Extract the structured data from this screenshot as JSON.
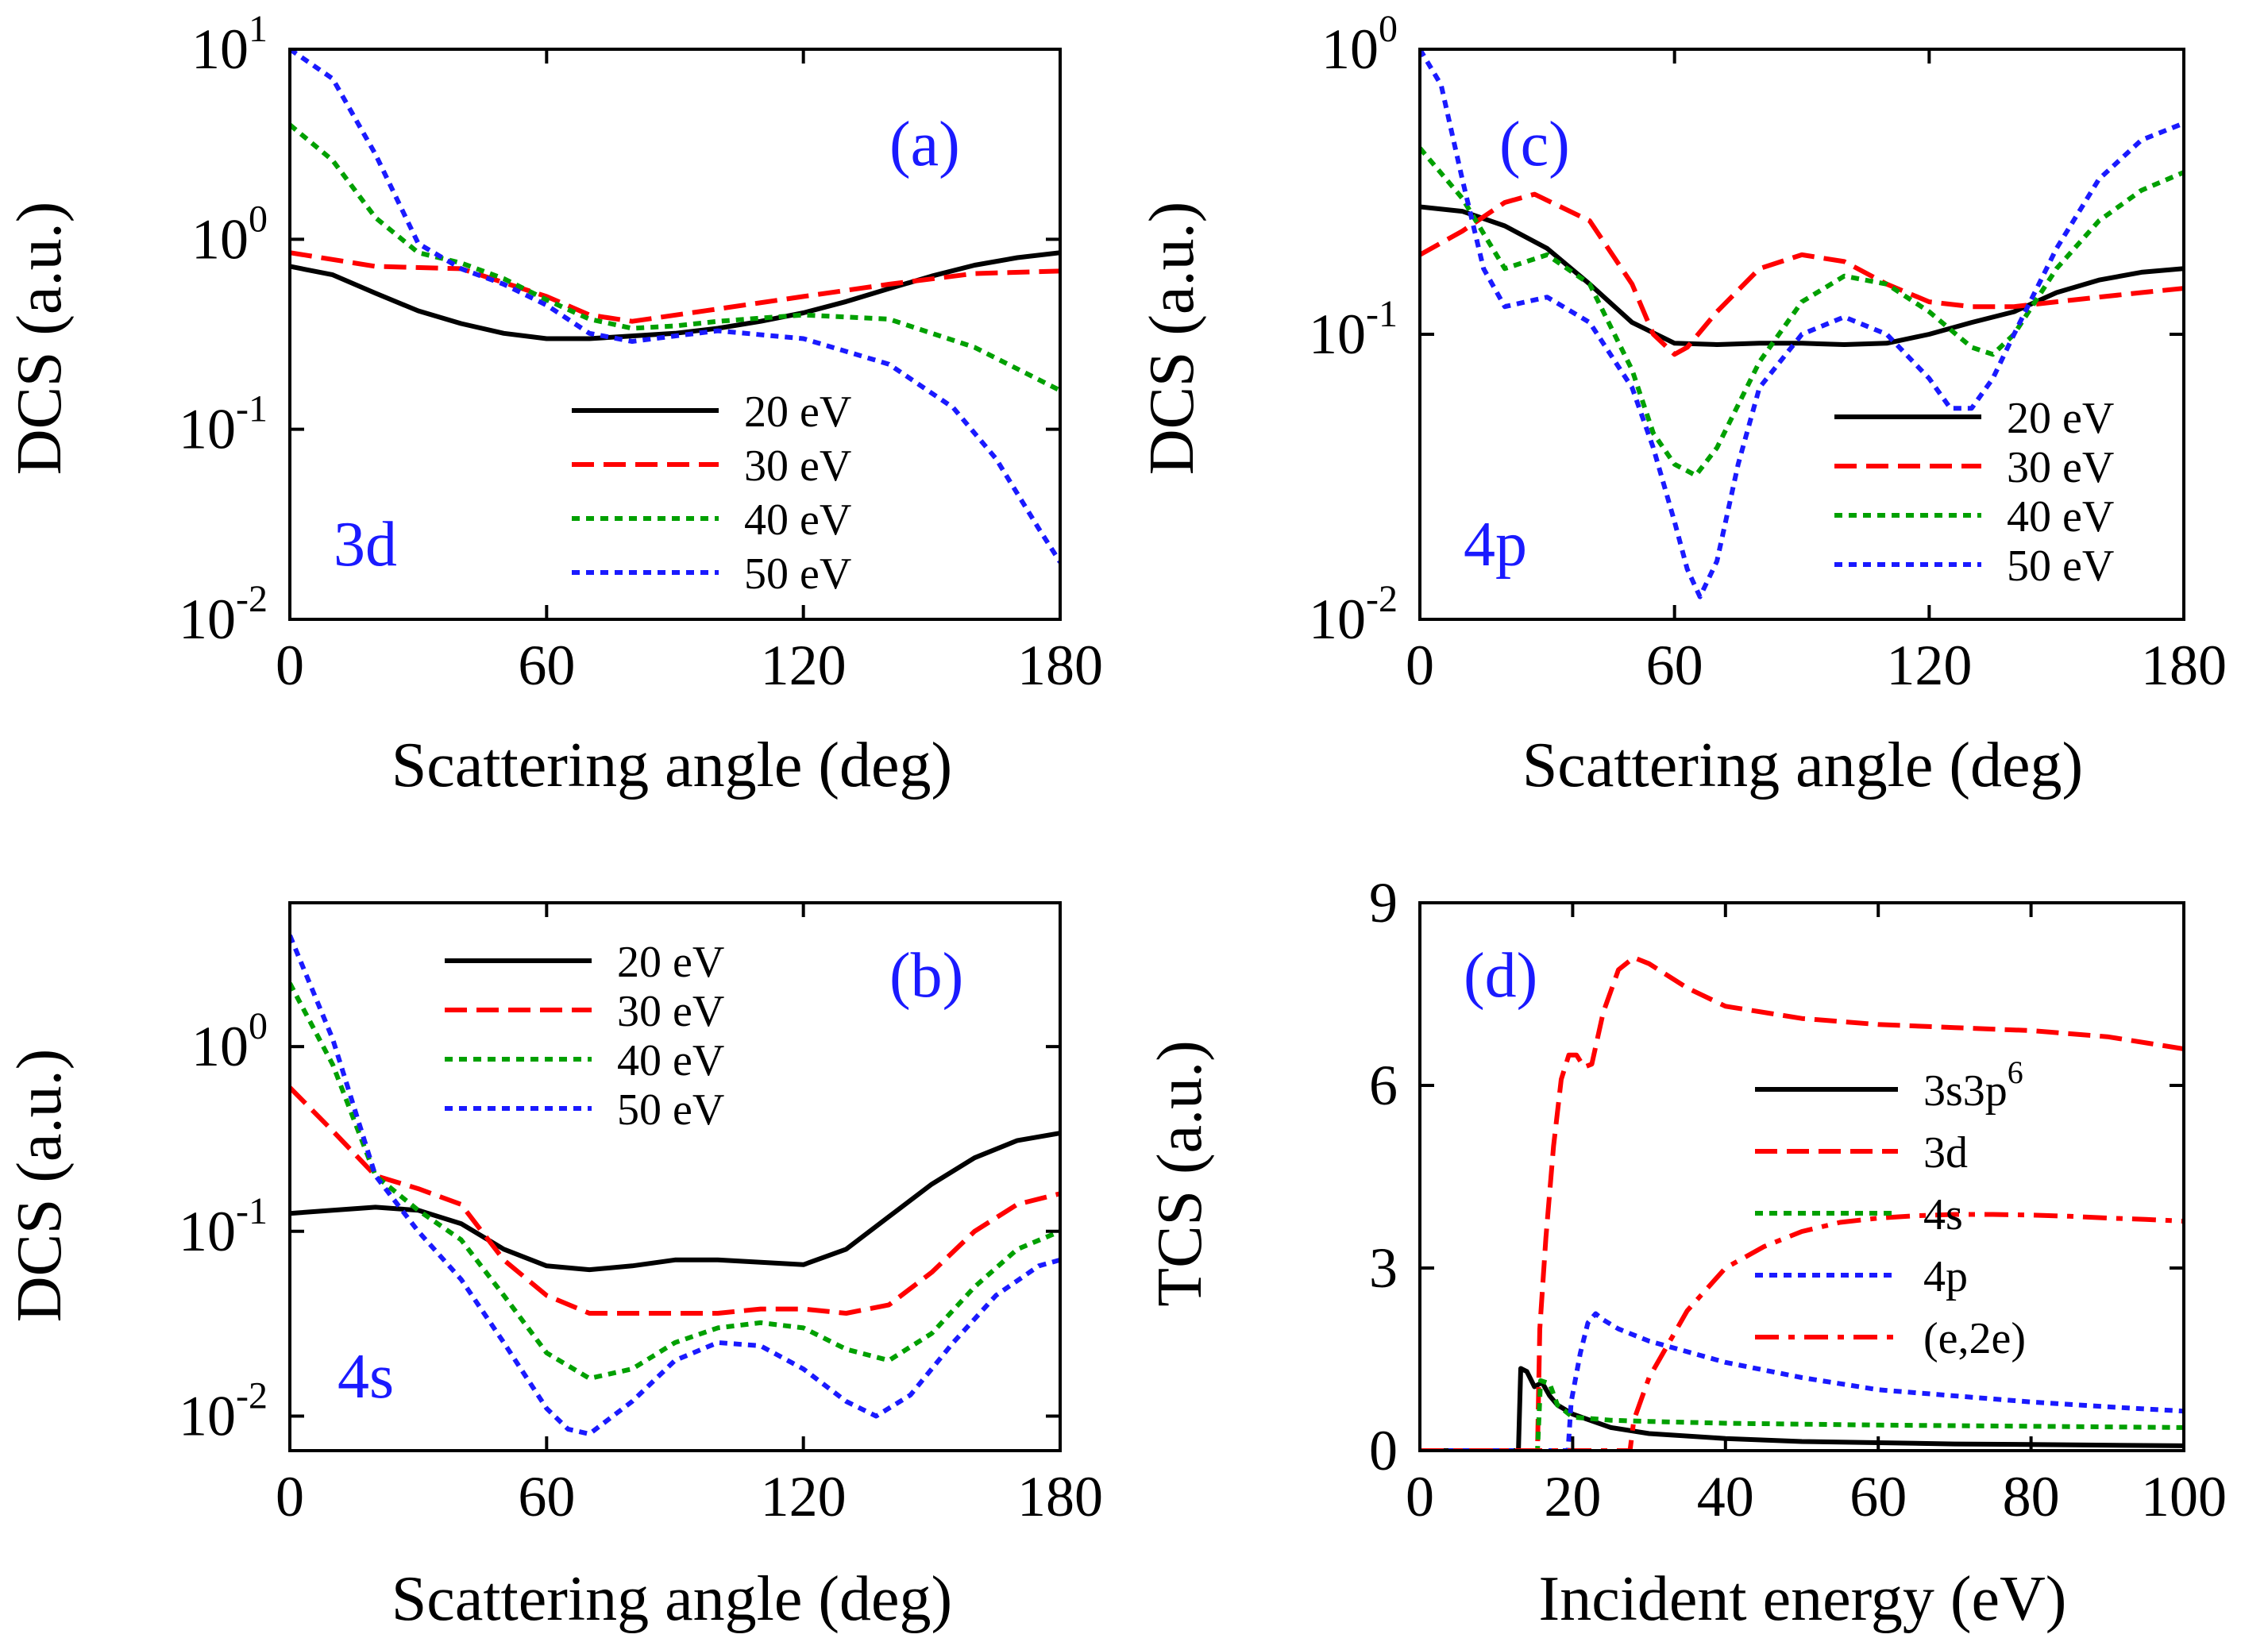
{
  "chart_data": [
    {
      "id": "a",
      "type": "line",
      "title": "",
      "panel_label": "(a)",
      "orbital_label": "3d",
      "xlabel": "Scattering angle (deg)",
      "ylabel": "DCS (a.u.)",
      "yscale": "log",
      "xlim": [
        0,
        180
      ],
      "ylim": [
        0.01,
        10
      ],
      "xticks": [
        0,
        60,
        120,
        180
      ],
      "yticks": [
        {
          "v": 10,
          "base": "10",
          "exp": "1"
        },
        {
          "v": 1,
          "base": "10",
          "exp": "0"
        },
        {
          "v": 0.1,
          "base": "10",
          "exp": "-1"
        },
        {
          "v": 0.01,
          "base": "10",
          "exp": "-2"
        }
      ],
      "legend": {
        "position": "lower-right"
      },
      "series": [
        {
          "name": "20 eV",
          "color": "#000000",
          "dash": "solid",
          "x": [
            0,
            10,
            20,
            30,
            40,
            50,
            60,
            70,
            80,
            90,
            100,
            110,
            120,
            130,
            140,
            150,
            160,
            170,
            180
          ],
          "y": [
            0.72,
            0.65,
            0.52,
            0.42,
            0.36,
            0.32,
            0.3,
            0.3,
            0.31,
            0.32,
            0.34,
            0.37,
            0.41,
            0.47,
            0.55,
            0.64,
            0.73,
            0.8,
            0.85
          ]
        },
        {
          "name": "30 eV",
          "color": "#ff0000",
          "dash": "dashed",
          "x": [
            0,
            20,
            40,
            60,
            70,
            80,
            100,
            120,
            140,
            160,
            180
          ],
          "y": [
            0.85,
            0.72,
            0.7,
            0.5,
            0.4,
            0.37,
            0.43,
            0.5,
            0.58,
            0.66,
            0.68
          ]
        },
        {
          "name": "40 eV",
          "color": "#00a000",
          "dash": "dotted",
          "x": [
            0,
            10,
            20,
            30,
            40,
            50,
            60,
            70,
            80,
            90,
            100,
            120,
            140,
            160,
            180
          ],
          "y": [
            4.0,
            2.6,
            1.3,
            0.85,
            0.75,
            0.62,
            0.48,
            0.38,
            0.34,
            0.35,
            0.37,
            0.4,
            0.38,
            0.27,
            0.16
          ]
        },
        {
          "name": "50 eV",
          "color": "#1a1aff",
          "dash": "dotted",
          "x": [
            0,
            10,
            20,
            30,
            40,
            50,
            60,
            70,
            80,
            90,
            100,
            120,
            140,
            155,
            165,
            175,
            180
          ],
          "y": [
            10.0,
            7.0,
            2.8,
            0.95,
            0.7,
            0.58,
            0.45,
            0.32,
            0.29,
            0.31,
            0.33,
            0.3,
            0.22,
            0.13,
            0.07,
            0.03,
            0.02
          ]
        }
      ]
    },
    {
      "id": "c",
      "type": "line",
      "title": "",
      "panel_label": "(c)",
      "orbital_label": "4p",
      "xlabel": "Scattering angle (deg)",
      "ylabel": "DCS (a.u.)",
      "yscale": "log",
      "xlim": [
        0,
        180
      ],
      "ylim": [
        0.01,
        1
      ],
      "xticks": [
        0,
        60,
        120,
        180
      ],
      "yticks": [
        {
          "v": 1,
          "base": "10",
          "exp": "0"
        },
        {
          "v": 0.1,
          "base": "10",
          "exp": "-1"
        },
        {
          "v": 0.01,
          "base": "10",
          "exp": "-2"
        }
      ],
      "legend": {
        "position": "lower-right"
      },
      "series": [
        {
          "name": "20 eV",
          "color": "#000000",
          "dash": "solid",
          "x": [
            0,
            10,
            20,
            30,
            40,
            50,
            60,
            70,
            80,
            90,
            100,
            110,
            120,
            130,
            140,
            150,
            160,
            170,
            180
          ],
          "y": [
            0.28,
            0.27,
            0.24,
            0.2,
            0.15,
            0.11,
            0.093,
            0.092,
            0.093,
            0.093,
            0.092,
            0.093,
            0.1,
            0.11,
            0.12,
            0.14,
            0.155,
            0.165,
            0.17
          ]
        },
        {
          "name": "30 eV",
          "color": "#ff0000",
          "dash": "dashed",
          "x": [
            0,
            10,
            20,
            27,
            40,
            50,
            55,
            60,
            63,
            70,
            80,
            90,
            100,
            110,
            120,
            130,
            140,
            150,
            160,
            170,
            180
          ],
          "y": [
            0.19,
            0.23,
            0.29,
            0.31,
            0.25,
            0.15,
            0.1,
            0.085,
            0.09,
            0.12,
            0.17,
            0.19,
            0.18,
            0.15,
            0.13,
            0.125,
            0.125,
            0.13,
            0.135,
            0.14,
            0.145
          ]
        },
        {
          "name": "40 eV",
          "color": "#00a000",
          "dash": "dotted",
          "x": [
            0,
            10,
            20,
            30,
            40,
            50,
            55,
            60,
            65,
            70,
            80,
            90,
            100,
            110,
            120,
            130,
            135,
            140,
            150,
            160,
            170,
            180
          ],
          "y": [
            0.45,
            0.3,
            0.17,
            0.19,
            0.15,
            0.075,
            0.045,
            0.035,
            0.032,
            0.04,
            0.08,
            0.13,
            0.16,
            0.15,
            0.12,
            0.09,
            0.085,
            0.1,
            0.17,
            0.25,
            0.32,
            0.37
          ]
        },
        {
          "name": "50 eV",
          "color": "#1a1aff",
          "dash": "dotted",
          "x": [
            0,
            5,
            10,
            15,
            20,
            25,
            30,
            40,
            50,
            55,
            60,
            63,
            66,
            70,
            75,
            80,
            90,
            100,
            110,
            120,
            125,
            130,
            135,
            140,
            150,
            160,
            170,
            180
          ],
          "y": [
            1.0,
            0.75,
            0.35,
            0.17,
            0.125,
            0.13,
            0.135,
            0.11,
            0.065,
            0.04,
            0.022,
            0.015,
            0.012,
            0.016,
            0.035,
            0.065,
            0.1,
            0.115,
            0.1,
            0.07,
            0.055,
            0.055,
            0.07,
            0.1,
            0.2,
            0.35,
            0.48,
            0.55
          ]
        }
      ]
    },
    {
      "id": "b",
      "type": "line",
      "title": "",
      "panel_label": "(b)",
      "orbital_label": "4s",
      "xlabel": "Scattering angle (deg)",
      "ylabel": "DCS (a.u.)",
      "yscale": "log",
      "xlim": [
        0,
        180
      ],
      "ylim": [
        0.0065,
        6
      ],
      "xticks": [
        0,
        60,
        120,
        180
      ],
      "yticks": [
        {
          "v": 1,
          "base": "10",
          "exp": "0"
        },
        {
          "v": 0.1,
          "base": "10",
          "exp": "-1"
        },
        {
          "v": 0.01,
          "base": "10",
          "exp": "-2"
        }
      ],
      "legend": {
        "position": "top-center"
      },
      "series": [
        {
          "name": "20 eV",
          "color": "#000000",
          "dash": "solid",
          "x": [
            0,
            10,
            20,
            30,
            40,
            50,
            60,
            70,
            80,
            90,
            100,
            110,
            120,
            130,
            140,
            150,
            160,
            170,
            180
          ],
          "y": [
            0.125,
            0.13,
            0.135,
            0.13,
            0.11,
            0.08,
            0.065,
            0.062,
            0.065,
            0.07,
            0.07,
            0.068,
            0.066,
            0.08,
            0.12,
            0.18,
            0.25,
            0.31,
            0.34
          ]
        },
        {
          "name": "30 eV",
          "color": "#ff0000",
          "dash": "dashed",
          "x": [
            0,
            10,
            20,
            30,
            40,
            50,
            60,
            70,
            80,
            90,
            100,
            110,
            120,
            130,
            140,
            150,
            160,
            170,
            180
          ],
          "y": [
            0.6,
            0.35,
            0.2,
            0.17,
            0.14,
            0.07,
            0.045,
            0.036,
            0.036,
            0.036,
            0.036,
            0.038,
            0.038,
            0.036,
            0.04,
            0.06,
            0.1,
            0.14,
            0.16
          ]
        },
        {
          "name": "40 eV",
          "color": "#00a000",
          "dash": "dotted",
          "x": [
            0,
            10,
            20,
            30,
            40,
            50,
            60,
            70,
            80,
            90,
            100,
            110,
            120,
            130,
            140,
            150,
            160,
            170,
            180
          ],
          "y": [
            2.2,
            0.8,
            0.2,
            0.13,
            0.09,
            0.045,
            0.022,
            0.016,
            0.018,
            0.025,
            0.03,
            0.032,
            0.03,
            0.023,
            0.02,
            0.028,
            0.05,
            0.08,
            0.1
          ]
        },
        {
          "name": "50 eV",
          "color": "#1a1aff",
          "dash": "dotted",
          "x": [
            0,
            10,
            20,
            30,
            40,
            50,
            60,
            65,
            70,
            80,
            90,
            100,
            110,
            120,
            130,
            137,
            145,
            155,
            165,
            175,
            180
          ],
          "y": [
            4.0,
            1.1,
            0.2,
            0.1,
            0.055,
            0.025,
            0.011,
            0.0085,
            0.008,
            0.012,
            0.02,
            0.025,
            0.024,
            0.018,
            0.012,
            0.01,
            0.013,
            0.025,
            0.045,
            0.065,
            0.07
          ]
        }
      ]
    },
    {
      "id": "d",
      "type": "line",
      "title": "",
      "panel_label": "(d)",
      "xlabel": "Incident energy (eV)",
      "ylabel": "TCS (a.u.)",
      "yscale": "linear",
      "xlim": [
        0,
        100
      ],
      "ylim": [
        0,
        9
      ],
      "xticks": [
        0,
        20,
        40,
        60,
        80,
        100
      ],
      "yticks": [
        {
          "v": 0,
          "base": "0"
        },
        {
          "v": 3,
          "base": "3"
        },
        {
          "v": 6,
          "base": "6"
        },
        {
          "v": 9,
          "base": "9"
        }
      ],
      "legend": {
        "position": "right"
      },
      "series": [
        {
          "name": "3s3p",
          "name_sup": "6",
          "color": "#000000",
          "dash": "solid",
          "x": [
            0,
            12.9,
            13.2,
            14,
            15,
            16,
            17,
            18,
            20,
            25,
            30,
            40,
            50,
            60,
            70,
            80,
            90,
            100
          ],
          "y": [
            0,
            0,
            1.35,
            1.3,
            1.05,
            1.12,
            0.9,
            0.75,
            0.6,
            0.38,
            0.28,
            0.2,
            0.15,
            0.13,
            0.11,
            0.1,
            0.09,
            0.08
          ]
        },
        {
          "name": "3d",
          "color": "#ff0000",
          "dash": "dashed",
          "x": [
            0,
            15.4,
            15.7,
            16.5,
            17.5,
            18.5,
            19.5,
            20.5,
            21.5,
            22.5,
            24,
            26,
            28,
            30,
            35,
            40,
            50,
            60,
            70,
            80,
            90,
            100
          ],
          "y": [
            0,
            0,
            2.0,
            3.5,
            5.0,
            6.1,
            6.5,
            6.5,
            6.3,
            6.35,
            7.2,
            7.9,
            8.1,
            8.0,
            7.6,
            7.3,
            7.1,
            7.0,
            6.95,
            6.9,
            6.8,
            6.6
          ]
        },
        {
          "name": "4s",
          "color": "#00a000",
          "dash": "dotted",
          "x": [
            0,
            15.4,
            15.8,
            17,
            18,
            20,
            25,
            30,
            40,
            60,
            80,
            100
          ],
          "y": [
            0,
            0,
            1.15,
            1.1,
            0.75,
            0.55,
            0.5,
            0.48,
            0.45,
            0.42,
            0.4,
            0.38
          ]
        },
        {
          "name": "4p",
          "color": "#1a1aff",
          "dash": "dotted",
          "x": [
            0,
            19.4,
            19.8,
            21,
            22,
            23,
            24,
            26,
            30,
            40,
            50,
            60,
            70,
            80,
            90,
            100
          ],
          "y": [
            0,
            0,
            0.8,
            1.6,
            2.1,
            2.25,
            2.15,
            2.0,
            1.8,
            1.45,
            1.2,
            1.0,
            0.9,
            0.8,
            0.72,
            0.65
          ]
        },
        {
          "name": "(e,2e)",
          "color": "#ff0000",
          "dash": "dashdot",
          "x": [
            0,
            27.5,
            28,
            30,
            35,
            40,
            45,
            50,
            55,
            60,
            65,
            70,
            75,
            80,
            85,
            90,
            95,
            100
          ],
          "y": [
            0,
            0,
            0.5,
            1.2,
            2.3,
            3.0,
            3.35,
            3.6,
            3.75,
            3.82,
            3.86,
            3.88,
            3.88,
            3.87,
            3.85,
            3.82,
            3.8,
            3.77
          ]
        }
      ]
    }
  ]
}
